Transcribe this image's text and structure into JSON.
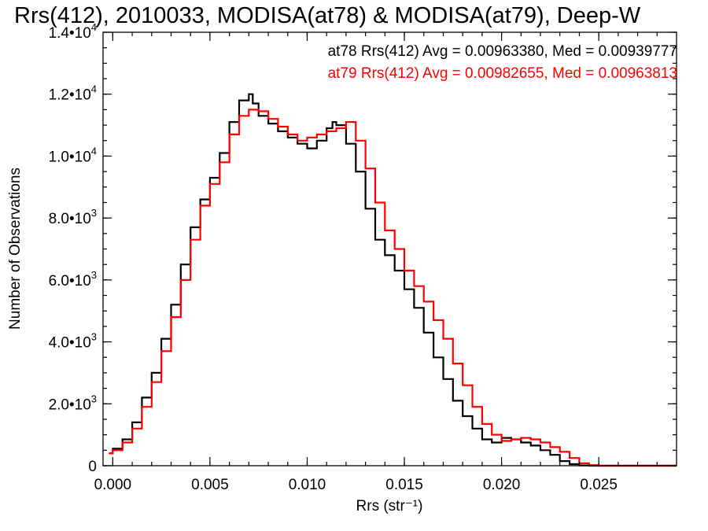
{
  "chart_data": {
    "type": "line",
    "step": true,
    "title": "Rrs(412), 2010033, MODISA(at78) & MODISA(at79), Deep-W",
    "xlabel": "Rrs (str⁻¹)",
    "ylabel": "Number of Observations",
    "xlim": [
      -0.0005,
      0.029
    ],
    "ylim": [
      0,
      14000
    ],
    "x_ticks": [
      {
        "value": 0.0,
        "label": "0.000"
      },
      {
        "value": 0.005,
        "label": "0.005"
      },
      {
        "value": 0.01,
        "label": "0.010"
      },
      {
        "value": 0.015,
        "label": "0.015"
      },
      {
        "value": 0.02,
        "label": "0.020"
      },
      {
        "value": 0.025,
        "label": "0.025"
      }
    ],
    "x_minor_step": 0.001,
    "y_ticks": [
      {
        "value": 0,
        "mant": "0",
        "exp": ""
      },
      {
        "value": 2000,
        "mant": "2.0•10",
        "exp": "3"
      },
      {
        "value": 4000,
        "mant": "4.0•10",
        "exp": "3"
      },
      {
        "value": 6000,
        "mant": "6.0•10",
        "exp": "3"
      },
      {
        "value": 8000,
        "mant": "8.0•10",
        "exp": "3"
      },
      {
        "value": 10000,
        "mant": "1.0•10",
        "exp": "4"
      },
      {
        "value": 12000,
        "mant": "1.2•10",
        "exp": "4"
      },
      {
        "value": 14000,
        "mant": "1.4•10",
        "exp": "4"
      }
    ],
    "y_minor_step": 500,
    "legend": [
      {
        "text": "at78 Rrs(412) Avg = 0.00963380, Med = 0.00939777",
        "color": "#000000"
      },
      {
        "text": "at79 Rrs(412) Avg = 0.00982655, Med = 0.00963813",
        "color": "#ff0000"
      }
    ],
    "series": [
      {
        "color": "#000000",
        "x": [
          -0.0002,
          0.0,
          0.0005,
          0.001,
          0.0015,
          0.002,
          0.0025,
          0.003,
          0.0035,
          0.004,
          0.0045,
          0.005,
          0.0055,
          0.006,
          0.0065,
          0.007,
          0.0072,
          0.0075,
          0.008,
          0.0085,
          0.009,
          0.0095,
          0.01,
          0.0105,
          0.011,
          0.0113,
          0.0115,
          0.012,
          0.0125,
          0.013,
          0.0135,
          0.014,
          0.0145,
          0.015,
          0.0155,
          0.016,
          0.0165,
          0.017,
          0.0175,
          0.018,
          0.0185,
          0.019,
          0.0195,
          0.02,
          0.0205,
          0.021,
          0.0215,
          0.022,
          0.0225,
          0.023,
          0.0235,
          0.024,
          0.0245,
          0.025,
          0.026,
          0.027,
          0.028,
          0.029
        ],
        "y": [
          400,
          550,
          850,
          1400,
          2200,
          3000,
          4100,
          5200,
          6500,
          7700,
          8600,
          9300,
          10100,
          11100,
          11800,
          12000,
          11700,
          11300,
          11050,
          10800,
          10600,
          10400,
          10250,
          10500,
          10900,
          11100,
          11000,
          10400,
          9500,
          8300,
          7300,
          6800,
          6300,
          5700,
          5100,
          4300,
          3500,
          2800,
          2100,
          1600,
          1200,
          850,
          750,
          900,
          850,
          750,
          650,
          500,
          350,
          150,
          50,
          10,
          0,
          0,
          0,
          0,
          0,
          0
        ]
      },
      {
        "color": "#ff0000",
        "x": [
          -0.0002,
          0.0,
          0.0005,
          0.001,
          0.0015,
          0.002,
          0.0025,
          0.003,
          0.0035,
          0.004,
          0.0045,
          0.005,
          0.0055,
          0.006,
          0.0065,
          0.007,
          0.0075,
          0.008,
          0.0085,
          0.009,
          0.0095,
          0.01,
          0.0105,
          0.011,
          0.0115,
          0.012,
          0.0125,
          0.013,
          0.0135,
          0.014,
          0.0145,
          0.015,
          0.0155,
          0.016,
          0.0165,
          0.017,
          0.0175,
          0.018,
          0.0185,
          0.019,
          0.0195,
          0.02,
          0.0205,
          0.021,
          0.0215,
          0.022,
          0.0225,
          0.023,
          0.0235,
          0.024,
          0.0245,
          0.025,
          0.026,
          0.027,
          0.028,
          0.029
        ],
        "y": [
          400,
          500,
          750,
          1200,
          1900,
          2700,
          3700,
          4800,
          6000,
          7300,
          8400,
          9100,
          9800,
          10700,
          11300,
          11500,
          11450,
          11200,
          10950,
          10700,
          10500,
          10600,
          10700,
          10800,
          10900,
          11100,
          10500,
          9600,
          8500,
          7600,
          7000,
          6300,
          5800,
          5300,
          4700,
          4100,
          3300,
          2600,
          1900,
          1350,
          1000,
          800,
          850,
          900,
          850,
          750,
          600,
          450,
          250,
          80,
          20,
          0,
          0,
          0,
          0,
          0
        ]
      }
    ]
  }
}
